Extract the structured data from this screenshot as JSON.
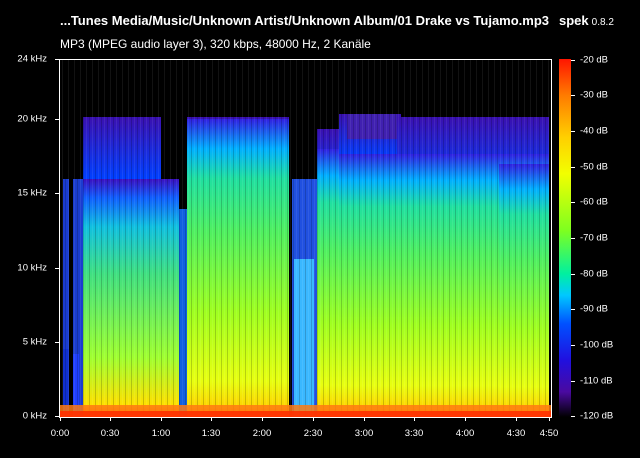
{
  "header": {
    "file_title": "...Tunes Media/Music/Unknown Artist/Unknown Album/01 Drake vs Tujamo.mp3",
    "app_name": "spek",
    "app_version": "0.8.2",
    "file_info": "MP3 (MPEG audio layer 3), 320 kbps, 48000 Hz, 2 Kanäle"
  },
  "frequency_axis": [
    "24 kHz",
    "20 kHz",
    "15 kHz",
    "10 kHz",
    "5 kHz",
    "0 kHz"
  ],
  "time_axis": [
    "0:00",
    "0:30",
    "1:00",
    "1:30",
    "2:00",
    "2:30",
    "3:00",
    "3:30",
    "4:00",
    "4:30",
    "4:50"
  ],
  "db_scale": [
    "-20 dB",
    "-30 dB",
    "-40 dB",
    "-50 dB",
    "-60 dB",
    "-70 dB",
    "-80 dB",
    "-90 dB",
    "-100 dB",
    "-110 dB",
    "-120 dB"
  ],
  "colors": {
    "background": "#000000",
    "frame": "#ffffff"
  }
}
